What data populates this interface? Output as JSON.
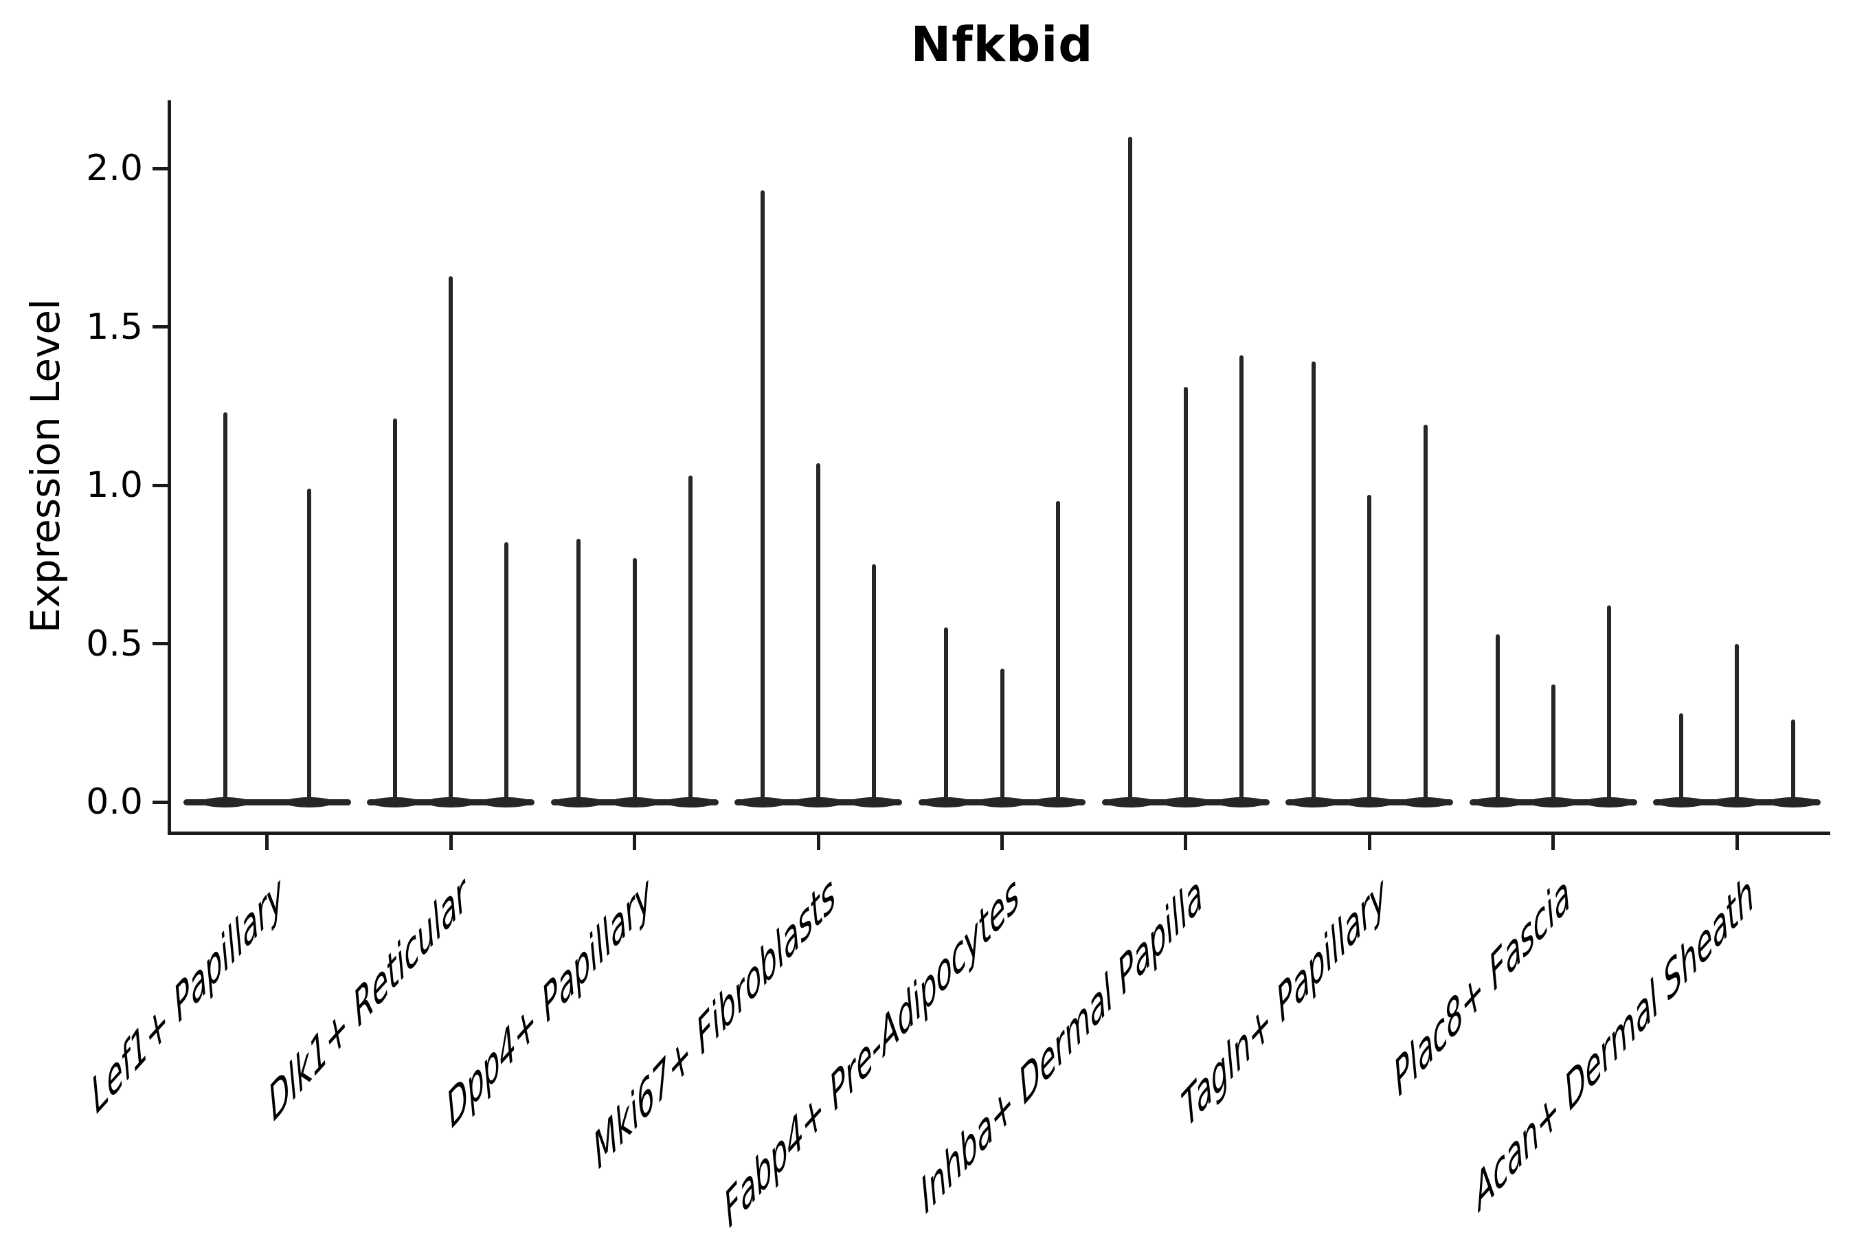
{
  "chart_data": {
    "type": "violin",
    "title": "Nfkbid",
    "xlabel": "",
    "ylabel": "Expression Level",
    "yticks": [
      0.0,
      0.5,
      1.0,
      1.5,
      2.0
    ],
    "ylim": [
      -0.09,
      2.21
    ],
    "grid": false,
    "legend": "none",
    "line_color": "#262626",
    "spine_color": "#1a1a1a",
    "description": "Violin plot of gene expression; each cell-type category shows flat near-zero violins with thin vertical density spikes whose tops reach the listed maximum expression values.",
    "categories": [
      {
        "label": "Lef1+ Papillary",
        "spike_heights": [
          1.23,
          0.99
        ]
      },
      {
        "label": "Dlk1+ Reticular",
        "spike_heights": [
          1.21,
          1.66,
          0.82
        ]
      },
      {
        "label": "Dpp4+ Papillary",
        "spike_heights": [
          0.83,
          0.77,
          1.03
        ]
      },
      {
        "label": "Mki67+ Fibroblasts",
        "spike_heights": [
          1.93,
          1.07,
          0.75
        ]
      },
      {
        "label": "Fabp4+ Pre-Adipocytes",
        "spike_heights": [
          0.55,
          0.42,
          0.95
        ]
      },
      {
        "label": "Inhba+ Dermal Papilla",
        "spike_heights": [
          2.1,
          1.31,
          1.41
        ]
      },
      {
        "label": "Tagln+ Papillary",
        "spike_heights": [
          1.39,
          0.97,
          1.19
        ]
      },
      {
        "label": "Plac8+ Fascia",
        "spike_heights": [
          0.53,
          0.37,
          0.62
        ]
      },
      {
        "label": "Acan+ Dermal Sheath",
        "spike_heights": [
          0.28,
          0.5,
          0.26
        ]
      }
    ]
  }
}
